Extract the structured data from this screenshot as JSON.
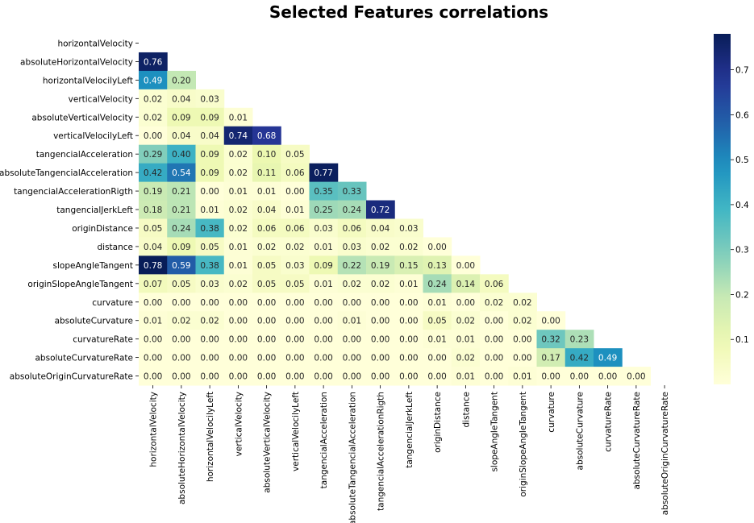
{
  "chart_data": {
    "type": "heatmap",
    "title": "Selected Features correlations",
    "labels": [
      "horizontalVelocity",
      "absoluteHorizontalVelocity",
      "horizontalVelocilyLeft",
      "verticalVelocity",
      "absoluteVerticalVelocity",
      "verticalVelocilyLeft",
      "tangencialAcceleration",
      "absoluteTangencialAcceleration",
      "tangencialAccelerationRigth",
      "tangencialJerkLeft",
      "originDistance",
      "distance",
      "slopeAngleTangent",
      "originSlopeAngleTangent",
      "curvature",
      "absoluteCurvature",
      "curvatureRate",
      "absoluteCurvatureRate",
      "absoluteOriginCurvatureRate"
    ],
    "values": [
      [],
      [
        0.76
      ],
      [
        0.49,
        0.2
      ],
      [
        0.02,
        0.04,
        0.03
      ],
      [
        0.02,
        0.09,
        0.09,
        0.01
      ],
      [
        0.0,
        0.04,
        0.04,
        0.74,
        0.68
      ],
      [
        0.29,
        0.4,
        0.09,
        0.02,
        0.1,
        0.05
      ],
      [
        0.42,
        0.54,
        0.09,
        0.02,
        0.11,
        0.06,
        0.77
      ],
      [
        0.19,
        0.21,
        0.0,
        0.01,
        0.01,
        0.0,
        0.35,
        0.33
      ],
      [
        0.18,
        0.21,
        0.01,
        0.02,
        0.04,
        0.01,
        0.25,
        0.24,
        0.72
      ],
      [
        0.05,
        0.24,
        0.38,
        0.02,
        0.06,
        0.06,
        0.03,
        0.06,
        0.04,
        0.03
      ],
      [
        0.04,
        0.09,
        0.05,
        0.01,
        0.02,
        0.02,
        0.01,
        0.03,
        0.02,
        0.02,
        0.0
      ],
      [
        0.78,
        0.59,
        0.38,
        0.01,
        0.05,
        0.03,
        0.09,
        0.22,
        0.19,
        0.15,
        0.13,
        0.0
      ],
      [
        0.07,
        0.05,
        0.03,
        0.02,
        0.05,
        0.05,
        0.01,
        0.02,
        0.02,
        0.01,
        0.24,
        0.14,
        0.06
      ],
      [
        0.0,
        0.0,
        0.0,
        0.0,
        0.0,
        0.0,
        0.0,
        0.0,
        0.0,
        0.0,
        0.01,
        0.0,
        0.02,
        0.02
      ],
      [
        0.01,
        0.02,
        0.02,
        0.0,
        0.0,
        0.0,
        0.0,
        0.01,
        0.0,
        0.0,
        0.05,
        0.02,
        0.0,
        0.02,
        0.0
      ],
      [
        0.0,
        0.0,
        0.0,
        0.0,
        0.0,
        0.0,
        0.0,
        0.0,
        0.0,
        0.0,
        0.01,
        0.01,
        0.0,
        0.0,
        0.32,
        0.23
      ],
      [
        0.0,
        0.0,
        0.0,
        0.0,
        0.0,
        0.0,
        0.0,
        0.0,
        0.0,
        0.0,
        0.0,
        0.02,
        0.0,
        0.0,
        0.17,
        0.42,
        0.49
      ],
      [
        0.0,
        0.0,
        0.0,
        0.0,
        0.0,
        0.0,
        0.0,
        0.0,
        0.0,
        0.0,
        0.0,
        0.01,
        0.0,
        0.01,
        0.0,
        0.0,
        0.0,
        0.0
      ]
    ],
    "colorbar": {
      "colormap": "YlGnBu",
      "range": [
        0.0,
        0.78
      ],
      "ticks": [
        "0.1",
        "0.2",
        "0.3",
        "0.4",
        "0.5",
        "0.6",
        "0.7"
      ]
    },
    "mask": "upper-triangle-including-diagonal",
    "annotated": true,
    "number_format": "0.00"
  }
}
